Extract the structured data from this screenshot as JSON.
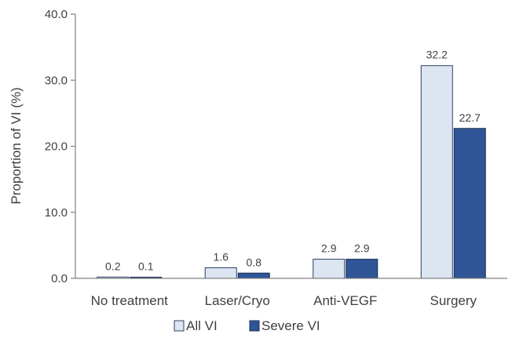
{
  "chart_data": {
    "type": "bar",
    "categories": [
      "No treatment",
      "Laser/Cryo",
      "Anti-VEGF",
      "Surgery"
    ],
    "series": [
      {
        "name": "All VI",
        "values": [
          0.2,
          1.6,
          2.9,
          32.2
        ],
        "labels": [
          "0.2",
          "1.6",
          "2.9",
          "32.2"
        ],
        "color": "#dce6f2",
        "border": "#2f3f5f"
      },
      {
        "name": "Severe VI",
        "values": [
          0.1,
          0.8,
          2.9,
          22.7
        ],
        "labels": [
          "0.1",
          "0.8",
          "2.9",
          "22.7"
        ],
        "color": "#2f5597",
        "border": "#1f2f4f"
      }
    ],
    "ylabel": "Proportion of VI (%)",
    "xlabel": "",
    "ylim": [
      0,
      40
    ],
    "yticks": [
      "0.0",
      "10.0",
      "20.0",
      "30.0",
      "40.0"
    ],
    "grid": false,
    "legend_position": "bottom"
  }
}
